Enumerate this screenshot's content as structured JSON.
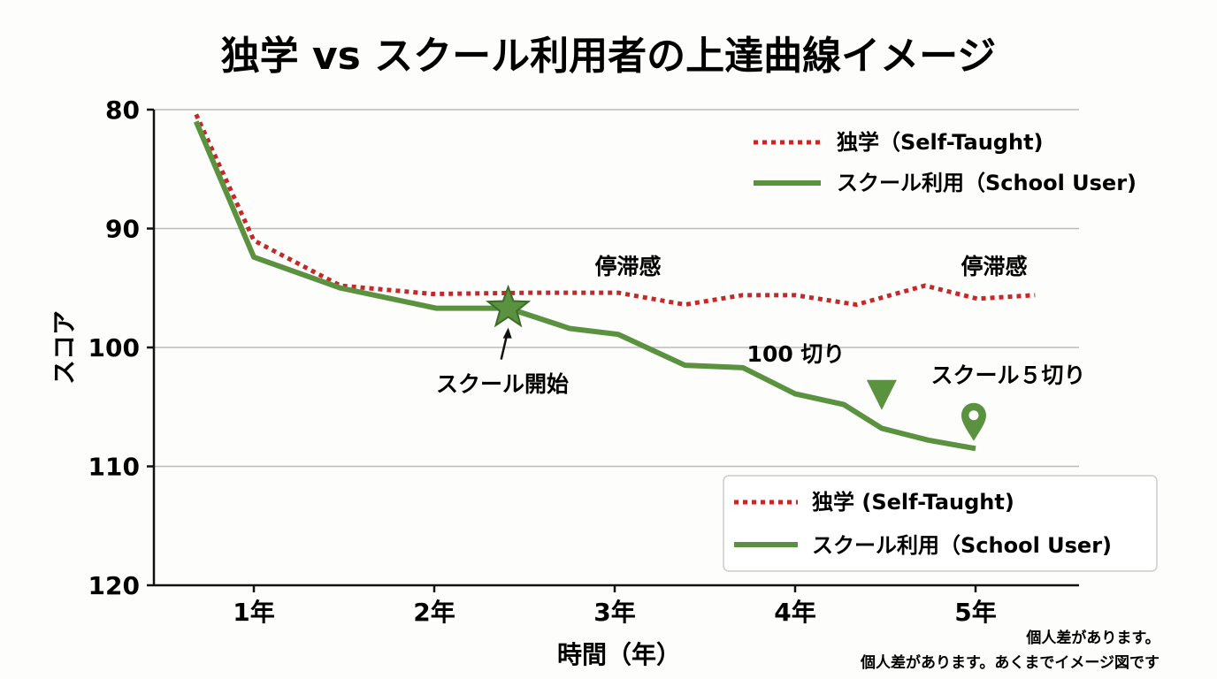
{
  "chart_data": {
    "type": "line",
    "title": "独学 vs スクール利用者の上達曲線イメージ",
    "xlabel": "時間（年）",
    "ylabel": "スコア",
    "xlim": [
      0.45,
      5.6
    ],
    "ylim": [
      120,
      80
    ],
    "y_inverted": true,
    "grid": "horizontal",
    "xticks": [
      {
        "value": 1,
        "label": "1年"
      },
      {
        "value": 2,
        "label": "2年"
      },
      {
        "value": 3,
        "label": "3年"
      },
      {
        "value": 4,
        "label": "4年"
      },
      {
        "value": 5,
        "label": "5年"
      }
    ],
    "yticks": [
      {
        "value": 80,
        "label": "80"
      },
      {
        "value": 90,
        "label": "90"
      },
      {
        "value": 100,
        "label": "100"
      },
      {
        "value": 110,
        "label": "110"
      },
      {
        "value": 120,
        "label": "120"
      }
    ],
    "series": [
      {
        "name": "独学（Self-Taught)",
        "color": "#c62828",
        "style": "dotted",
        "x": [
          0.68,
          1.0,
          1.48,
          1.99,
          2.53,
          3.02,
          3.39,
          3.71,
          4.0,
          4.34,
          4.72,
          5.01,
          5.33
        ],
        "y": [
          80.4,
          91.0,
          94.8,
          95.5,
          95.4,
          95.4,
          96.4,
          95.6,
          95.6,
          96.4,
          94.8,
          95.9,
          95.6
        ]
      },
      {
        "name": "スクール利用（School User)",
        "color": "#5b9240",
        "style": "solid",
        "x": [
          0.68,
          1.0,
          1.48,
          2.01,
          2.41,
          2.75,
          3.02,
          3.39,
          3.71,
          4.0,
          4.27,
          4.48,
          4.74,
          5.0
        ],
        "y": [
          81.0,
          92.4,
          95.0,
          96.7,
          96.7,
          98.4,
          98.9,
          101.5,
          101.7,
          103.9,
          104.8,
          106.8,
          107.8,
          108.5
        ]
      }
    ],
    "annotations": [
      {
        "text": "停滞感",
        "x": 3.1,
        "y": 93.0
      },
      {
        "text": "停滞感",
        "x": 5.35,
        "y": 93.0
      },
      {
        "text": "スクール開始",
        "x": 2.41,
        "y": 96.7,
        "marker": "star"
      },
      {
        "text": "100 切り",
        "x": 3.95,
        "y": 100.5
      },
      {
        "text": "スクール５切り",
        "x": 5.35,
        "y": 102.2
      },
      {
        "marker": "triangle-down",
        "x": 4.48,
        "y": 104.0
      },
      {
        "marker": "pin",
        "x": 4.99,
        "y": 106.0
      }
    ],
    "legends": [
      {
        "placement": "top-right",
        "boxed": false,
        "entries": [
          "独学（Self-Taught)",
          "スクール利用（School User)"
        ]
      },
      {
        "placement": "bottom-right",
        "boxed": true,
        "entries": [
          "独学 (Self-Taught)",
          "スクール利用（School User)"
        ]
      }
    ],
    "notes": [
      "個人差があります。",
      "個人差があります。あくまでイメージ図です"
    ]
  }
}
